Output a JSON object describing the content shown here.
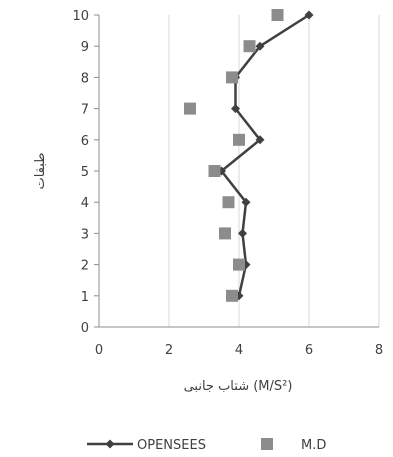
{
  "chart_data": {
    "type": "scatter",
    "xlabel": "شتاب جانبی (M/S²)",
    "ylabel": "طبقات",
    "xlim": [
      0,
      8
    ],
    "ylim": [
      0,
      10
    ],
    "x_ticks": [
      "0",
      "2",
      "4",
      "6",
      "8"
    ],
    "y_ticks": [
      "0",
      "1",
      "2",
      "3",
      "4",
      "5",
      "6",
      "7",
      "8",
      "9",
      "10"
    ],
    "grid": "vertical",
    "legend_position": "bottom",
    "series": [
      {
        "name": "OPENSEES",
        "type": "line",
        "marker": "diamond",
        "color": "#404040",
        "points": [
          {
            "x": 4.0,
            "y": 1
          },
          {
            "x": 4.2,
            "y": 2
          },
          {
            "x": 4.1,
            "y": 3
          },
          {
            "x": 4.2,
            "y": 4
          },
          {
            "x": 3.5,
            "y": 5
          },
          {
            "x": 4.6,
            "y": 6
          },
          {
            "x": 3.9,
            "y": 7
          },
          {
            "x": 3.9,
            "y": 8
          },
          {
            "x": 4.6,
            "y": 9
          },
          {
            "x": 6.0,
            "y": 10
          }
        ]
      },
      {
        "name": "M.D",
        "type": "scatter",
        "marker": "square",
        "color": "#8c8c8c",
        "points": [
          {
            "x": 3.8,
            "y": 1
          },
          {
            "x": 4.0,
            "y": 2
          },
          {
            "x": 3.6,
            "y": 3
          },
          {
            "x": 3.7,
            "y": 4
          },
          {
            "x": 3.3,
            "y": 5
          },
          {
            "x": 4.0,
            "y": 6
          },
          {
            "x": 2.6,
            "y": 7
          },
          {
            "x": 3.8,
            "y": 8
          },
          {
            "x": 4.3,
            "y": 9
          },
          {
            "x": 5.1,
            "y": 10
          }
        ]
      }
    ]
  }
}
